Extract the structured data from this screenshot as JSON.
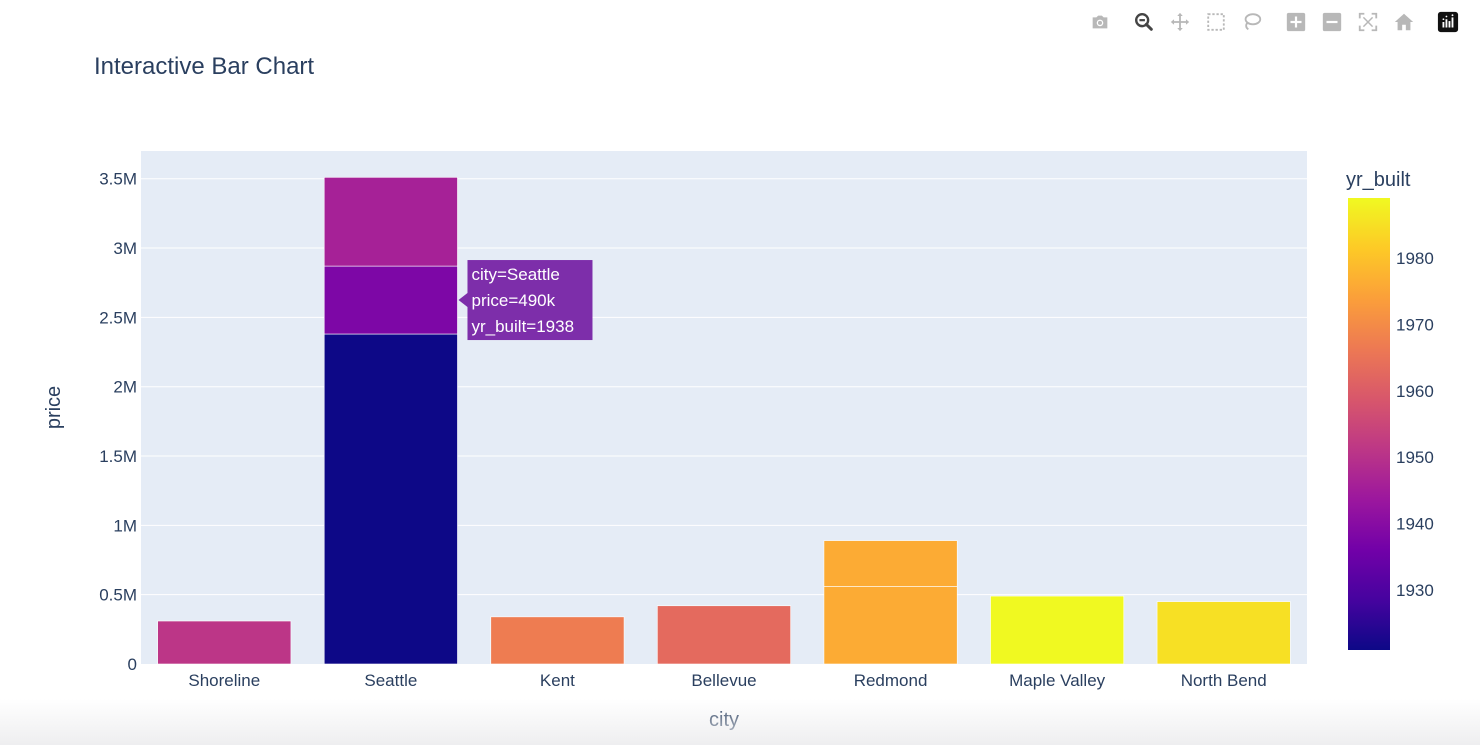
{
  "title": "Interactive Bar Chart",
  "modebar": {
    "buttons": [
      "camera-icon",
      "zoom-icon",
      "pan-icon",
      "box-select-icon",
      "lasso-icon",
      "zoom-in-icon",
      "zoom-out-icon",
      "autoscale-icon",
      "reset-axes-icon",
      "plotly-logo-icon"
    ]
  },
  "chart_data": {
    "type": "bar",
    "barmode": "stack",
    "xlabel": "city",
    "ylabel": "price",
    "ylim": [
      0,
      3.7
    ],
    "y_unit": "M",
    "yticks": [
      {
        "v": 0,
        "label": "0"
      },
      {
        "v": 0.5,
        "label": "0.5M"
      },
      {
        "v": 1,
        "label": "1M"
      },
      {
        "v": 1.5,
        "label": "1.5M"
      },
      {
        "v": 2,
        "label": "2M"
      },
      {
        "v": 2.5,
        "label": "2.5M"
      },
      {
        "v": 3,
        "label": "3M"
      },
      {
        "v": 3.5,
        "label": "3.5M"
      }
    ],
    "categories": [
      "Shoreline",
      "Seattle",
      "Kent",
      "Bellevue",
      "Redmond",
      "Maple Valley",
      "North Bend"
    ],
    "stacks": [
      [
        {
          "price": 0.31,
          "yr_built": 1951
        }
      ],
      [
        {
          "price": 2.38,
          "yr_built": 1921
        },
        {
          "price": 0.49,
          "yr_built": 1938
        },
        {
          "price": 0.64,
          "yr_built": 1946
        }
      ],
      [
        {
          "price": 0.34,
          "yr_built": 1967
        }
      ],
      [
        {
          "price": 0.42,
          "yr_built": 1963
        }
      ],
      [
        {
          "price": 0.56,
          "yr_built": 1976
        },
        {
          "price": 0.33,
          "yr_built": 1976
        }
      ],
      [
        {
          "price": 0.49,
          "yr_built": 1989
        }
      ],
      [
        {
          "price": 0.45,
          "yr_built": 1985
        }
      ]
    ],
    "colorbar": {
      "title": "yr_built",
      "range": [
        1921,
        1989
      ],
      "ticks": [
        1930,
        1940,
        1950,
        1960,
        1970,
        1980
      ],
      "colorscale": [
        "#0d0887",
        "#46039f",
        "#7201a8",
        "#9c179e",
        "#bd3786",
        "#d8576b",
        "#ed7953",
        "#fb9f3a",
        "#fdca26",
        "#f0f921"
      ]
    },
    "hover": {
      "category_index": 1,
      "segment_index": 1,
      "lines": [
        "city=Seattle",
        "price=490k",
        "yr_built=1938"
      ]
    }
  },
  "colors": {
    "plot_bg": "#e5ecf6",
    "grid": "#ffffff",
    "text": "#2a3f5f",
    "tooltip_bg": "#7d2eaa",
    "icon_grey": "#b8b8b8",
    "icon_active": "#444444"
  }
}
